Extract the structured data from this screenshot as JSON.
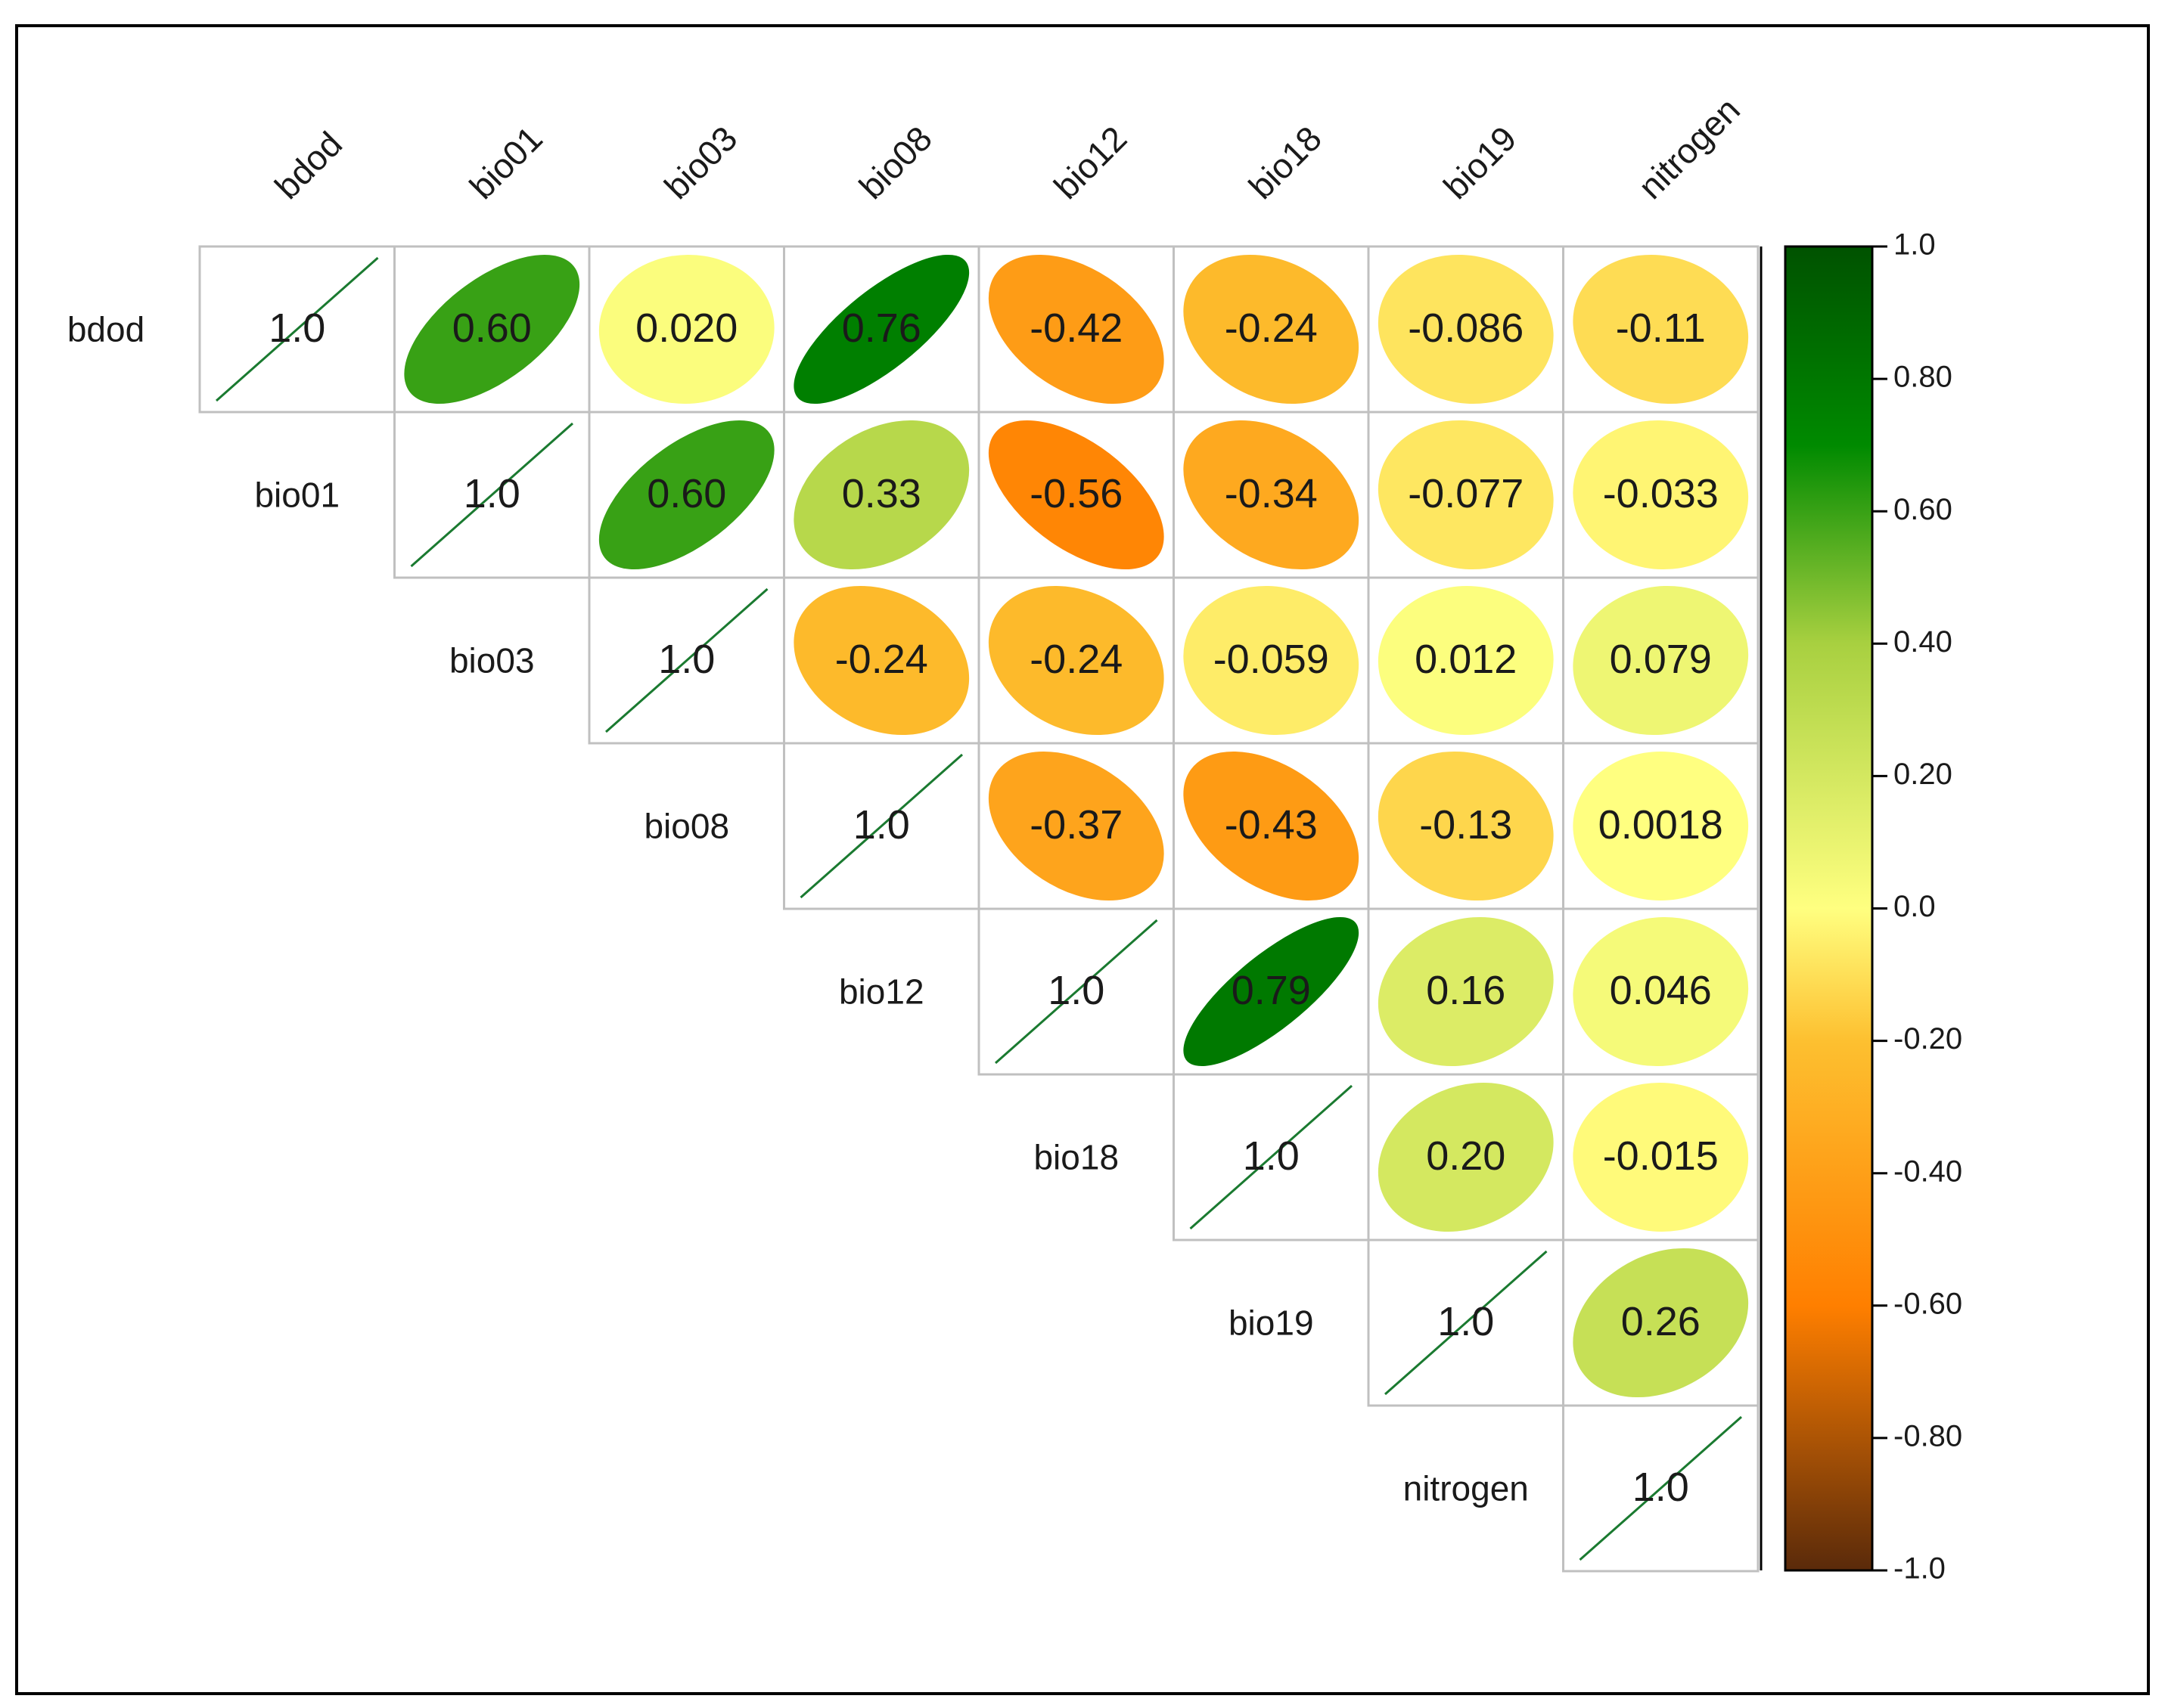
{
  "chart_data": {
    "type": "heatmap",
    "subtype": "correlation-matrix-upper-ellipse",
    "variables": [
      "bdod",
      "bio01",
      "bio03",
      "bio08",
      "bio12",
      "bio18",
      "bio19",
      "nitrogen"
    ],
    "diagonal_label": "1.0",
    "matrix": [
      [
        1.0,
        0.6,
        0.02,
        0.76,
        -0.42,
        -0.24,
        -0.086,
        -0.11
      ],
      [
        null,
        1.0,
        0.6,
        0.33,
        -0.56,
        -0.34,
        -0.077,
        -0.033
      ],
      [
        null,
        null,
        1.0,
        -0.24,
        -0.24,
        -0.059,
        0.012,
        0.079
      ],
      [
        null,
        null,
        null,
        1.0,
        -0.37,
        -0.43,
        -0.13,
        0.0018
      ],
      [
        null,
        null,
        null,
        null,
        1.0,
        0.79,
        0.16,
        0.046
      ],
      [
        null,
        null,
        null,
        null,
        null,
        1.0,
        0.2,
        -0.015
      ],
      [
        null,
        null,
        null,
        null,
        null,
        null,
        1.0,
        0.26
      ],
      [
        null,
        null,
        null,
        null,
        null,
        null,
        null,
        1.0
      ]
    ],
    "labels": [
      [
        "1.0",
        "0.60",
        "0.020",
        "0.76",
        "-0.42",
        "-0.24",
        "-0.086",
        "-0.11"
      ],
      [
        null,
        "1.0",
        "0.60",
        "0.33",
        "-0.56",
        "-0.34",
        "-0.077",
        "-0.033"
      ],
      [
        null,
        null,
        "1.0",
        "-0.24",
        "-0.24",
        "-0.059",
        "0.012",
        "0.079"
      ],
      [
        null,
        null,
        null,
        "1.0",
        "-0.37",
        "-0.43",
        "-0.13",
        "0.0018"
      ],
      [
        null,
        null,
        null,
        null,
        "1.0",
        "0.79",
        "0.16",
        "0.046"
      ],
      [
        null,
        null,
        null,
        null,
        null,
        "1.0",
        "0.20",
        "-0.015"
      ],
      [
        null,
        null,
        null,
        null,
        null,
        null,
        "1.0",
        "0.26"
      ],
      [
        null,
        null,
        null,
        null,
        null,
        null,
        null,
        "1.0"
      ]
    ],
    "colorbar": {
      "range": [
        -1.0,
        1.0
      ],
      "ticks": [
        1.0,
        0.8,
        0.6,
        0.4,
        0.2,
        0.0,
        -0.2,
        -0.4,
        -0.6,
        -0.8,
        -1.0
      ],
      "tick_labels": [
        "1.0",
        "0.80",
        "0.60",
        "0.40",
        "0.20",
        "0.0",
        "-0.20",
        "-0.40",
        "-0.60",
        "-0.80",
        "-1.0"
      ],
      "stops": [
        {
          "value": -1.0,
          "color": "#5a2a0a"
        },
        {
          "value": -0.6,
          "color": "#ff7f00"
        },
        {
          "value": -0.2,
          "color": "#fdc030"
        },
        {
          "value": 0.0,
          "color": "#ffff80"
        },
        {
          "value": 0.4,
          "color": "#a8d040"
        },
        {
          "value": 0.7,
          "color": "#008a00"
        },
        {
          "value": 1.0,
          "color": "#005200"
        }
      ]
    },
    "diagonal_line_color": "#1a7a30",
    "grid_color": "#c0c0c0"
  }
}
